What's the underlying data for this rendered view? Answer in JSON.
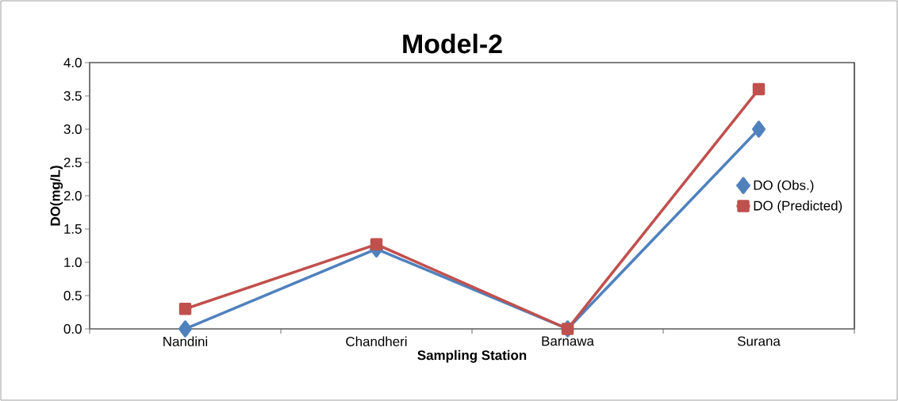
{
  "chart_data": {
    "type": "line",
    "title": "Model-2",
    "xlabel": "Sampling Station",
    "ylabel": "DO(mg/L)",
    "categories": [
      "Nandini",
      "Chandheri",
      "Barnawa",
      "Surana"
    ],
    "series": [
      {
        "name": "DO (Obs.)",
        "color": "#4f81bd",
        "marker": "diamond",
        "values": [
          0.0,
          1.2,
          0.0,
          3.0
        ]
      },
      {
        "name": "DO (Predicted)",
        "color": "#c0504d",
        "marker": "square",
        "values": [
          0.3,
          1.27,
          0.0,
          3.6
        ]
      }
    ],
    "ylim": [
      0,
      4
    ],
    "yticks": [
      {
        "value": 0,
        "label": "0.0"
      },
      {
        "value": 0.5,
        "label": "0.5"
      },
      {
        "value": 1,
        "label": "1.0"
      },
      {
        "value": 1.5,
        "label": "1.5"
      },
      {
        "value": 2,
        "label": "2.0"
      },
      {
        "value": 2.5,
        "label": "2.5"
      },
      {
        "value": 3,
        "label": "3.0"
      },
      {
        "value": 3.5,
        "label": "3.5"
      },
      {
        "value": 4,
        "label": "4.0"
      }
    ],
    "grid": false,
    "legend": "right",
    "line_style": "solid"
  }
}
